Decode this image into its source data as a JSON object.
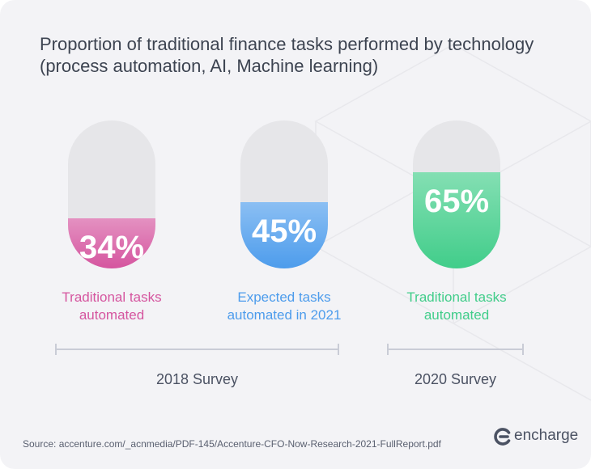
{
  "title": "Proportion of traditional finance tasks performed by technology (process automation, AI, Machine learning)",
  "chart_data": {
    "type": "bar",
    "categories": [
      "Traditional tasks automated",
      "Expected tasks automated in 2021",
      "Traditional tasks automated"
    ],
    "values": [
      34,
      45,
      65
    ],
    "value_labels": [
      "34%",
      "45%",
      "65%"
    ],
    "label_lines": [
      [
        "Traditional tasks",
        "automated"
      ],
      [
        "Expected tasks",
        "automated in 2021"
      ],
      [
        "Traditional tasks",
        "automated"
      ]
    ],
    "colors": [
      "#d5559f",
      "#4d9cec",
      "#41cd8a"
    ],
    "ylim": [
      0,
      100
    ],
    "groups": [
      {
        "label": "2018 Survey",
        "members": [
          0,
          1
        ]
      },
      {
        "label": "2020 Survey",
        "members": [
          2
        ]
      }
    ]
  },
  "source": "Source: accenture.com/_acnmedia/PDF-145/Accenture-CFO-Now-Research-2021-FullReport.pdf",
  "logo": {
    "text": "encharge"
  }
}
